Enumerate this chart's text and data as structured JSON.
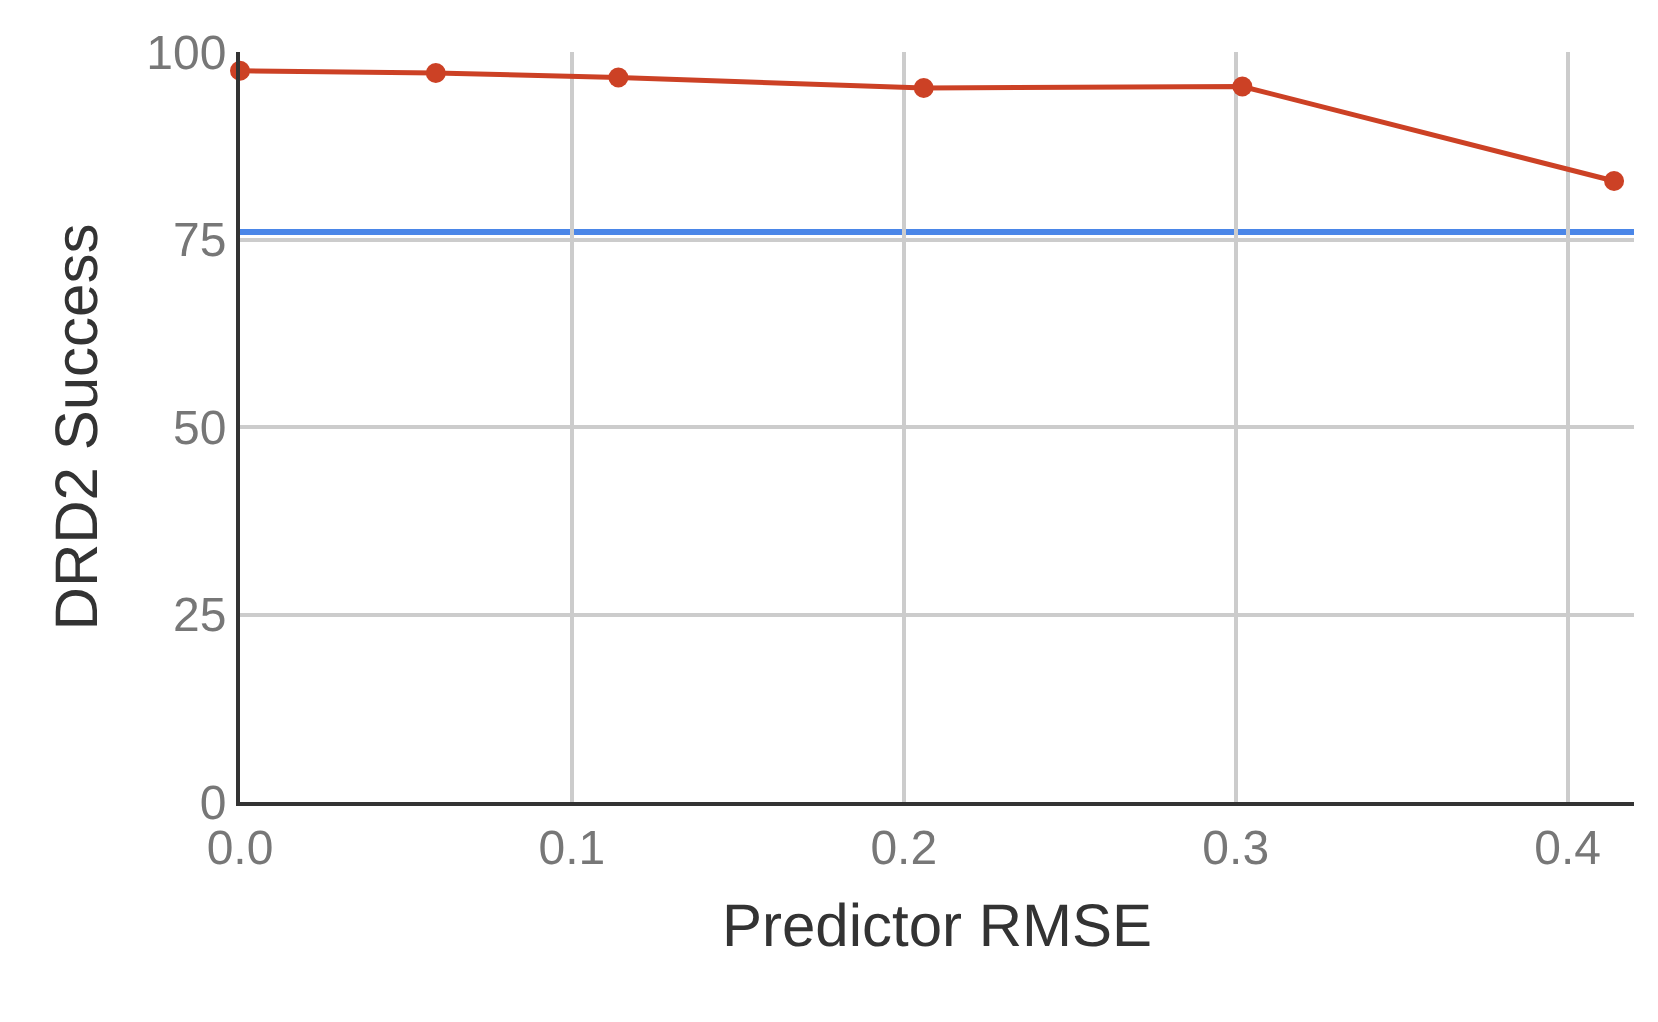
{
  "chart_data": {
    "type": "line",
    "xlabel": "Predictor RMSE",
    "ylabel": "DRD2 Success",
    "x": [
      0,
      0.059,
      0.114,
      0.206,
      0.302,
      0.414
    ],
    "series": [
      {
        "color": "#cc4125",
        "values": [
          97.5,
          97.2,
          96.6,
          95.2,
          95.4,
          82.8
        ]
      }
    ],
    "ref_lines": [
      {
        "axis": "y",
        "value": 76,
        "color": "#4a86e8"
      }
    ],
    "xlim": [
      0,
      0.42
    ],
    "xticks": [
      {
        "value": 0,
        "label": "0.0"
      },
      0.1,
      0.2,
      0.3,
      0.4
    ],
    "ylim": [
      0,
      100
    ],
    "yticks": [
      0,
      25,
      50,
      75,
      100
    ],
    "grid": true,
    "marker": "circle",
    "line_style": "solid"
  }
}
